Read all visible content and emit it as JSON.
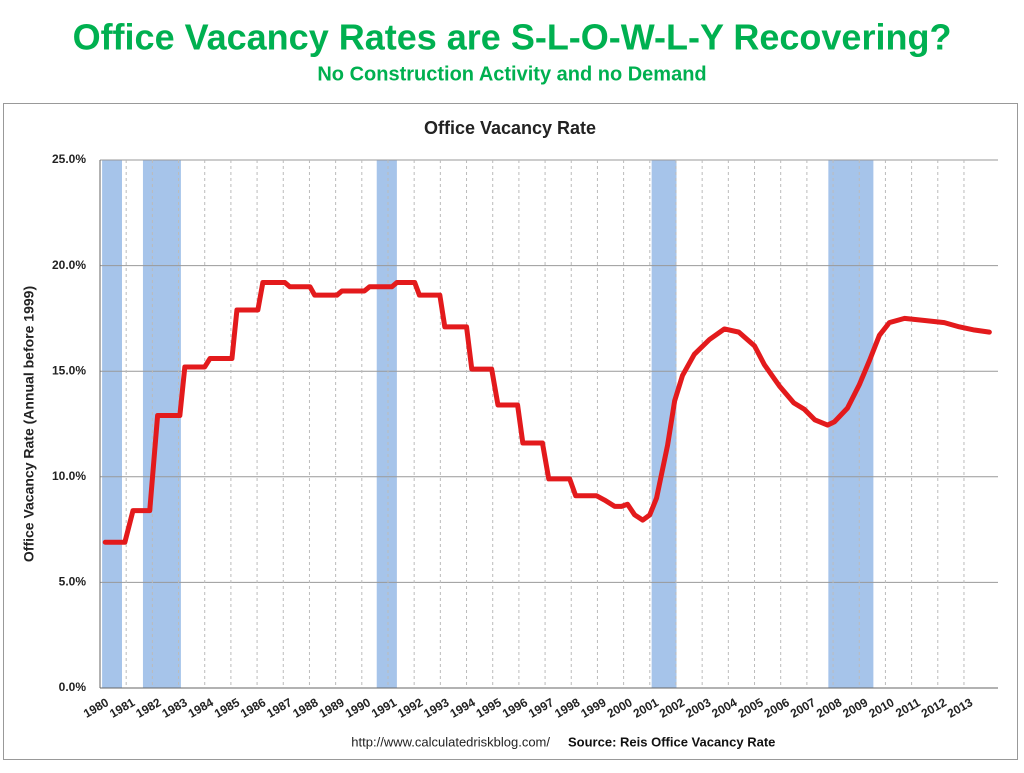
{
  "slide": {
    "title": "Office Vacancy Rates are S-L-O-W-L-Y Recovering?",
    "subtitle": "No Construction Activity and no Demand"
  },
  "chart_data": {
    "type": "line",
    "title": "Office Vacancy Rate",
    "y_label": "Office Vacancy Rate (Annual before 1999)",
    "source_url": "http://www.calculatedriskblog.com/",
    "source": "Source: Reis Office Vacancy Rate",
    "x": [
      1980.2,
      1980.95,
      1981.26,
      1981.9,
      1982.2,
      1983.05,
      1983.24,
      1984.0,
      1984.2,
      1985.04,
      1985.23,
      1986.03,
      1986.22,
      1987.06,
      1987.25,
      1988.02,
      1988.2,
      1989.05,
      1989.24,
      1990.1,
      1990.3,
      1991.15,
      1991.34,
      1992.02,
      1992.2,
      1992.98,
      1993.17,
      1994.0,
      1994.2,
      1994.96,
      1995.2,
      1995.95,
      1996.15,
      1996.9,
      1997.14,
      1997.94,
      1998.17,
      1998.97,
      1999.27,
      1999.66,
      1999.92,
      2000.15,
      2000.42,
      2000.73,
      2001.0,
      2001.26,
      2001.68,
      2001.95,
      2002.25,
      2002.7,
      2003.28,
      2003.85,
      2004.4,
      2005.0,
      2005.38,
      2005.95,
      2006.5,
      2006.9,
      2007.3,
      2007.79,
      2008.05,
      2008.55,
      2009.0,
      2009.39,
      2009.77,
      2010.15,
      2010.73,
      2011.5,
      2012.25,
      2012.82,
      2013.4,
      2013.97
    ],
    "series": [
      {
        "name": "Office Vacancy Rate",
        "color": "#e31a1c",
        "values": [
          6.9,
          6.9,
          8.4,
          8.4,
          12.9,
          12.9,
          15.2,
          15.2,
          15.6,
          15.6,
          17.9,
          17.9,
          19.2,
          19.2,
          19.0,
          19.0,
          18.6,
          18.6,
          18.8,
          18.8,
          19.0,
          19.0,
          19.2,
          19.2,
          18.6,
          18.6,
          17.1,
          17.1,
          15.1,
          15.1,
          13.4,
          13.4,
          11.6,
          11.6,
          9.9,
          9.9,
          9.1,
          9.1,
          8.9,
          8.6,
          8.6,
          8.7,
          8.2,
          7.95,
          8.2,
          9.0,
          11.5,
          13.6,
          14.8,
          15.8,
          16.5,
          17.0,
          16.85,
          16.2,
          15.3,
          14.3,
          13.5,
          13.2,
          12.7,
          12.45,
          12.6,
          13.25,
          14.35,
          15.5,
          16.7,
          17.3,
          17.5,
          17.4,
          17.3,
          17.1,
          16.95,
          16.85
        ]
      }
    ],
    "recessions": [
      [
        1980.08,
        1980.84
      ],
      [
        1981.64,
        1983.09
      ],
      [
        1990.57,
        1991.34
      ],
      [
        2001.07,
        2002.02
      ],
      [
        2007.82,
        2009.54
      ]
    ],
    "recession_color": "#a6c4ea",
    "xlim": [
      1980,
      2014.3
    ],
    "xticks": [
      1980,
      1981,
      1982,
      1983,
      1984,
      1985,
      1986,
      1987,
      1988,
      1989,
      1990,
      1991,
      1992,
      1993,
      1994,
      1995,
      1996,
      1997,
      1998,
      1999,
      2000,
      2001,
      2002,
      2003,
      2004,
      2005,
      2006,
      2007,
      2008,
      2009,
      2010,
      2011,
      2012,
      2013
    ],
    "ylim": [
      0,
      25
    ],
    "yticks": [
      {
        "value": 0,
        "label": "0.0%"
      },
      {
        "value": 5,
        "label": "5.0%"
      },
      {
        "value": 10,
        "label": "10.0%"
      },
      {
        "value": 15,
        "label": "15.0%"
      },
      {
        "value": 20,
        "label": "20.0%"
      },
      {
        "value": 25,
        "label": "25.0%"
      }
    ],
    "grid": true
  }
}
